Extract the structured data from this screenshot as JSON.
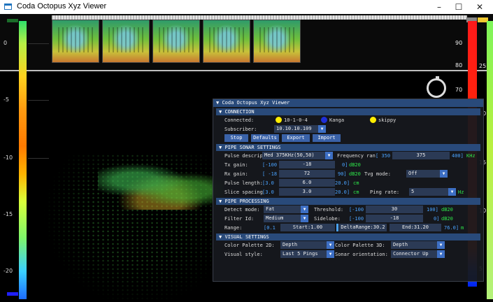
{
  "window": {
    "title": "Coda Octopus Xyz Viewer",
    "minimize": "–",
    "maximize": "☐",
    "close": "✕"
  },
  "left_scale": [
    "0",
    "-5",
    "-10",
    "-15",
    "-20"
  ],
  "right_scale": [
    "90",
    "80",
    "70",
    "60"
  ],
  "right_scale2": [
    "25",
    "20",
    "15",
    "10",
    "5"
  ],
  "panel": {
    "title": "Coda Octopus Xyz Viewer",
    "connection": {
      "header": "CONNECTION",
      "connected_label": "Connected:",
      "hosts": [
        {
          "name": "10-1-0-4",
          "color": "#ffee00"
        },
        {
          "name": "Kanga",
          "color": "#1f2fd8"
        },
        {
          "name": "skippy",
          "color": "#ffee00"
        }
      ],
      "subscriber_label": "Subscriber:",
      "subscriber_value": "10.10.10.109",
      "buttons": [
        "Stop",
        "Defaults",
        "Export",
        "Import"
      ]
    },
    "sonar": {
      "header": "PIPE SONAR SETTINGS",
      "pulse_label": "Pulse descrip",
      "pulse_value": "Med 375KHz(50,50)",
      "freq_label": "Frequency ran",
      "freq_min": "[ 350",
      "freq_value": "375",
      "freq_max": "400]",
      "freq_unit": "KHz",
      "tx_label": "Tx gain:",
      "tx_min": "[-100",
      "tx_value": "-18",
      "tx_max": "0]",
      "tx_unit": "dB20",
      "rx_label": "Rx gain:",
      "rx_min": "[ -18",
      "rx_value": "72",
      "rx_max": "90]",
      "rx_unit": "dB20",
      "tvg_label": "Tvg mode:",
      "tvg_value": "Off",
      "pl_label": "Pulse length:",
      "pl_min": "[3.0",
      "pl_value": "6.0",
      "pl_max": "20.0]",
      "pl_unit": "cm",
      "ss_label": "Slice spacing",
      "ss_min": "[3.0",
      "ss_value": "3.0",
      "ss_max": "20.0]",
      "ss_unit": "cm",
      "ping_label": "Ping rate:",
      "ping_value": "5",
      "ping_unit": "Hz"
    },
    "processing": {
      "header": "PIPE PROCESSING",
      "detect_label": "Detect mode:",
      "detect_value": "Fat",
      "thr_label": "Threshold:",
      "thr_min": "[-100",
      "thr_value": "30",
      "thr_max": "100]",
      "thr_unit": "dB20",
      "filter_label": "Filter Id:",
      "filter_value": "Medium",
      "side_label": "Sidelobe:",
      "side_min": "[-100",
      "side_value": "-18",
      "side_max": "0]",
      "side_unit": "dB20",
      "range_label": "Range:",
      "range_min": "[0.1",
      "range_start": "Start:1.00",
      "range_delta": "DeltaRange:30.2",
      "range_end": "End:31.20",
      "range_max": "76.0]",
      "range_unit": "m"
    },
    "visual": {
      "header": "VISUAL SETTINGS",
      "cp2d_label": "Color Palette 2D:",
      "cp2d_value": "Depth",
      "cp3d_label": "Color Palette 3D:",
      "cp3d_value": "Depth",
      "style_label": "Visual style:",
      "style_value": "Last 5 Pings",
      "orient_label": "Sonar orientation:",
      "orient_value": "Connector Up"
    }
  }
}
